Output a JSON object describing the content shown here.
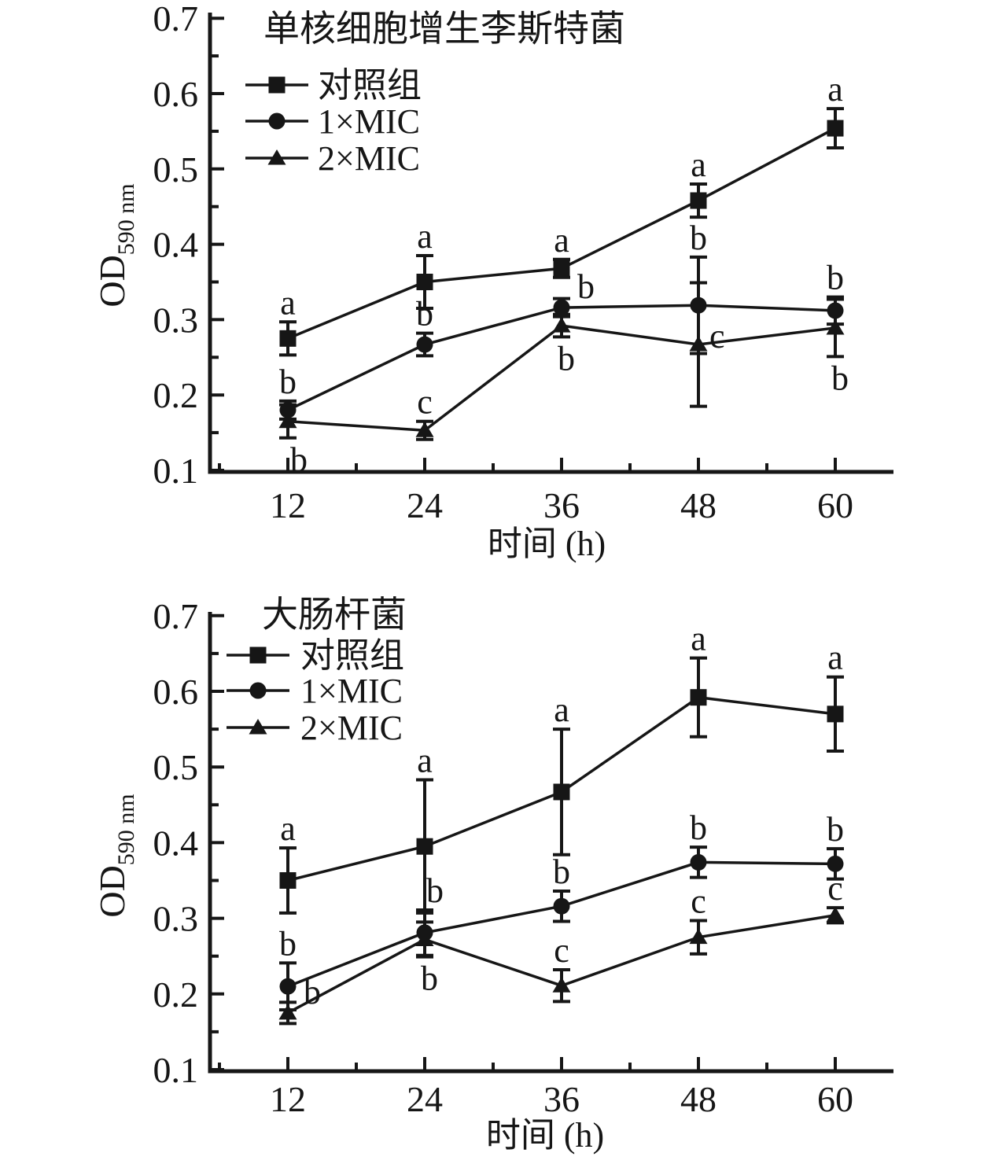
{
  "figure": {
    "background": "#ffffff",
    "ink_color": "#161616"
  },
  "chart_data": [
    {
      "type": "line",
      "title": "单核细胞增生李斯特菌",
      "xlabel": "时间 (h)",
      "ylabel": "OD",
      "ylabel_sub": "590 nm",
      "x": [
        12,
        24,
        36,
        48,
        60
      ],
      "x_minor_ticks": [
        6,
        18,
        30,
        42,
        54
      ],
      "y_ticks": [
        "0.1",
        "0.2",
        "0.3",
        "0.4",
        "0.5",
        "0.6",
        "0.7"
      ],
      "ylim": [
        0.1,
        0.7
      ],
      "xlim": [
        6,
        66
      ],
      "grid": false,
      "legend_position": "upper-left-inside",
      "series": [
        {
          "name": "对照组",
          "marker": "square",
          "values": [
            0.275,
            0.35,
            0.368,
            0.458,
            0.554
          ],
          "errors": [
            0.022,
            0.035,
            0.012,
            0.022,
            0.026
          ],
          "letters": [
            {
              "t": "a",
              "pos": "above"
            },
            {
              "t": "a",
              "pos": "above"
            },
            {
              "t": "a",
              "pos": "above"
            },
            {
              "t": "a",
              "pos": "above"
            },
            {
              "t": "a",
              "pos": "above"
            }
          ]
        },
        {
          "name": "1×MIC",
          "marker": "circle",
          "values": [
            0.18,
            0.267,
            0.316,
            0.319,
            0.312
          ],
          "errors": [
            0.012,
            0.015,
            0.012,
            0.064,
            0.018
          ],
          "letters": [
            {
              "t": "b",
              "pos": "above"
            },
            {
              "t": "b",
              "pos": "above"
            },
            {
              "t": "b",
              "pos": "above-right"
            },
            {
              "t": "b",
              "pos": "above"
            },
            {
              "t": "b",
              "pos": "above"
            }
          ]
        },
        {
          "name": "2×MIC",
          "marker": "triangle",
          "values": [
            0.165,
            0.153,
            0.292,
            0.267,
            0.289
          ],
          "errors": [
            0.022,
            0.012,
            0.015,
            0.082,
            0.038
          ],
          "letters": [
            {
              "t": "b",
              "pos": "below",
              "dx": 8
            },
            {
              "t": "c",
              "pos": "above"
            },
            {
              "t": "b",
              "pos": "below"
            },
            {
              "t": "c",
              "pos": "right"
            },
            {
              "t": "b",
              "pos": "below"
            }
          ]
        }
      ]
    },
    {
      "type": "line",
      "title": "大肠杆菌",
      "xlabel": "时间 (h)",
      "ylabel": "OD",
      "ylabel_sub": "590 nm",
      "x": [
        12,
        24,
        36,
        48,
        60
      ],
      "x_minor_ticks": [
        6,
        18,
        30,
        42,
        54
      ],
      "y_ticks": [
        "0.1",
        "0.2",
        "0.3",
        "0.4",
        "0.5",
        "0.6",
        "0.7"
      ],
      "ylim": [
        0.1,
        0.7
      ],
      "xlim": [
        6,
        66
      ],
      "grid": false,
      "legend_position": "upper-left-inside",
      "series": [
        {
          "name": "对照组",
          "marker": "square",
          "values": [
            0.35,
            0.395,
            0.467,
            0.592,
            0.57
          ],
          "errors": [
            0.043,
            0.088,
            0.083,
            0.052,
            0.049
          ],
          "letters": [
            {
              "t": "a",
              "pos": "above"
            },
            {
              "t": "a",
              "pos": "above"
            },
            {
              "t": "a",
              "pos": "above"
            },
            {
              "t": "a",
              "pos": "above"
            },
            {
              "t": "a",
              "pos": "above"
            }
          ]
        },
        {
          "name": "1×MIC",
          "marker": "circle",
          "values": [
            0.21,
            0.281,
            0.316,
            0.374,
            0.372
          ],
          "errors": [
            0.031,
            0.03,
            0.02,
            0.02,
            0.02
          ],
          "letters": [
            {
              "t": "b",
              "pos": "above"
            },
            {
              "t": "b",
              "pos": "above",
              "dx": 13
            },
            {
              "t": "b",
              "pos": "above"
            },
            {
              "t": "b",
              "pos": "above"
            },
            {
              "t": "b",
              "pos": "above"
            }
          ]
        },
        {
          "name": "2×MIC",
          "marker": "triangle",
          "values": [
            0.175,
            0.272,
            0.211,
            0.275,
            0.304
          ],
          "errors": [
            0.014,
            0.023,
            0.021,
            0.022,
            0.01
          ],
          "letters": [
            {
              "t": "b",
              "pos": "above-right"
            },
            {
              "t": "b",
              "pos": "below"
            },
            {
              "t": "c",
              "pos": "above"
            },
            {
              "t": "c",
              "pos": "above"
            },
            {
              "t": "c",
              "pos": "above"
            }
          ]
        }
      ]
    }
  ]
}
